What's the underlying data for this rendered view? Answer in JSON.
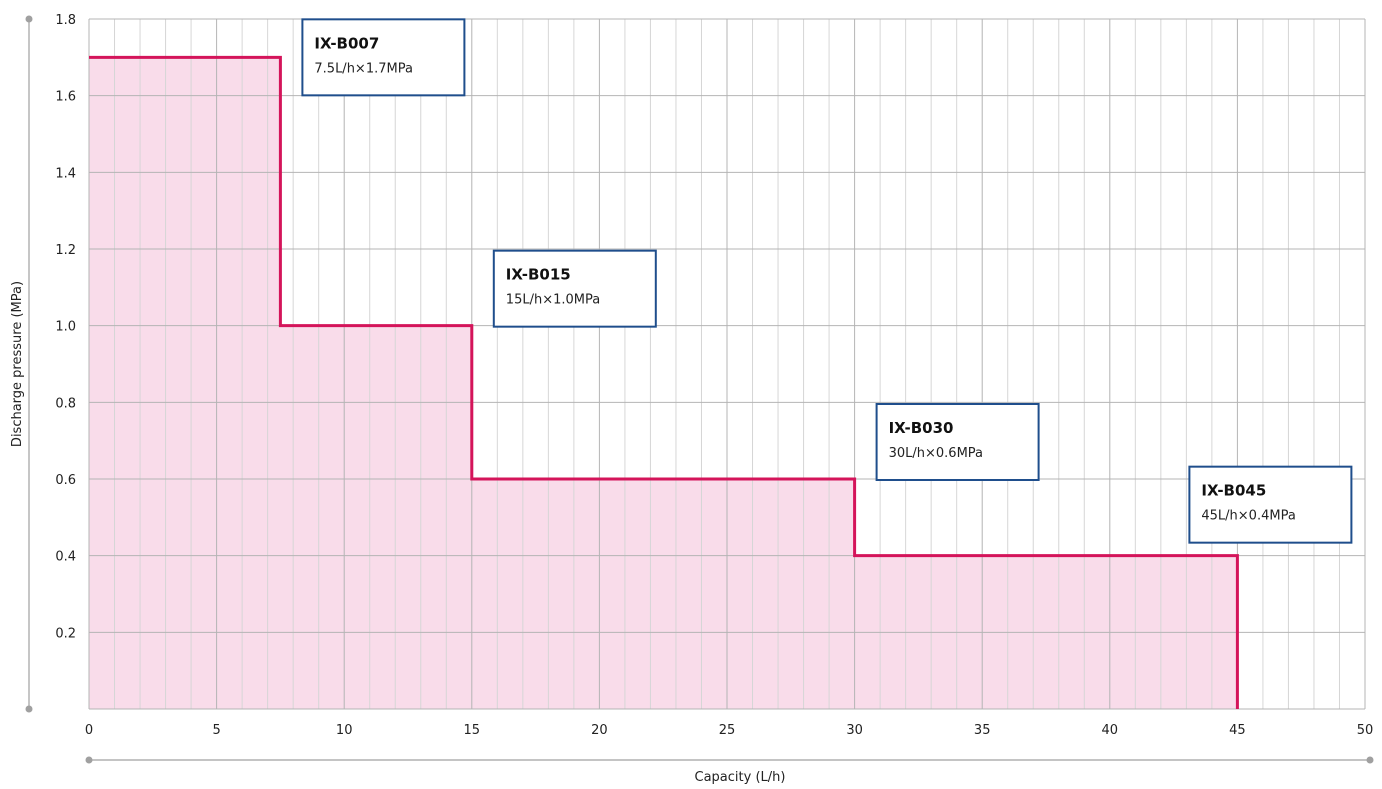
{
  "chart_data": {
    "type": "area",
    "title": "",
    "xlabel": "Capacity (L/h)",
    "ylabel": "Discharge pressure (MPa)",
    "xlim": [
      0,
      50
    ],
    "ylim": [
      0,
      1.8
    ],
    "x_ticks": [
      "0",
      "5",
      "10",
      "15",
      "20",
      "25",
      "30",
      "35",
      "40",
      "45",
      "50"
    ],
    "y_ticks": [
      "0.2",
      "0.4",
      "0.6",
      "0.8",
      "1.0",
      "1.2",
      "1.4",
      "1.6",
      "1.8"
    ],
    "x_tick_values": [
      0,
      5,
      10,
      15,
      20,
      25,
      30,
      35,
      40,
      45,
      50
    ],
    "y_tick_values": [
      0.2,
      0.4,
      0.6,
      0.8,
      1.0,
      1.2,
      1.4,
      1.6,
      1.8
    ],
    "grid": true,
    "minor_x_step": 1,
    "series": [
      {
        "x": [
          0,
          7.5,
          7.5,
          15,
          15,
          30,
          30,
          45,
          45
        ],
        "y": [
          1.7,
          1.7,
          1.0,
          1.0,
          0.6,
          0.6,
          0.4,
          0.4,
          0
        ]
      }
    ],
    "annotations": [
      {
        "title": "IX-B007",
        "text": "7.5L/h×1.7MPa",
        "x": 7.5,
        "y": 1.7
      },
      {
        "title": "IX-B015",
        "text": "15L/h×1.0MPa",
        "x": 15,
        "y": 1.0
      },
      {
        "title": "IX-B030",
        "text": "30L/h×0.6MPa",
        "x": 30,
        "y": 0.6
      },
      {
        "title": "IX-B045",
        "text": "45L/h×0.4MPa",
        "x": 45,
        "y": 0.4
      }
    ],
    "colors": {
      "line": "#d4145a",
      "fill": "#f9dcea",
      "grid_major": "#b4b4b4",
      "grid_minor": "#d6d6d6",
      "callout_border": "#1f4e8c",
      "axis_arrow": "#a0a0a0"
    }
  }
}
